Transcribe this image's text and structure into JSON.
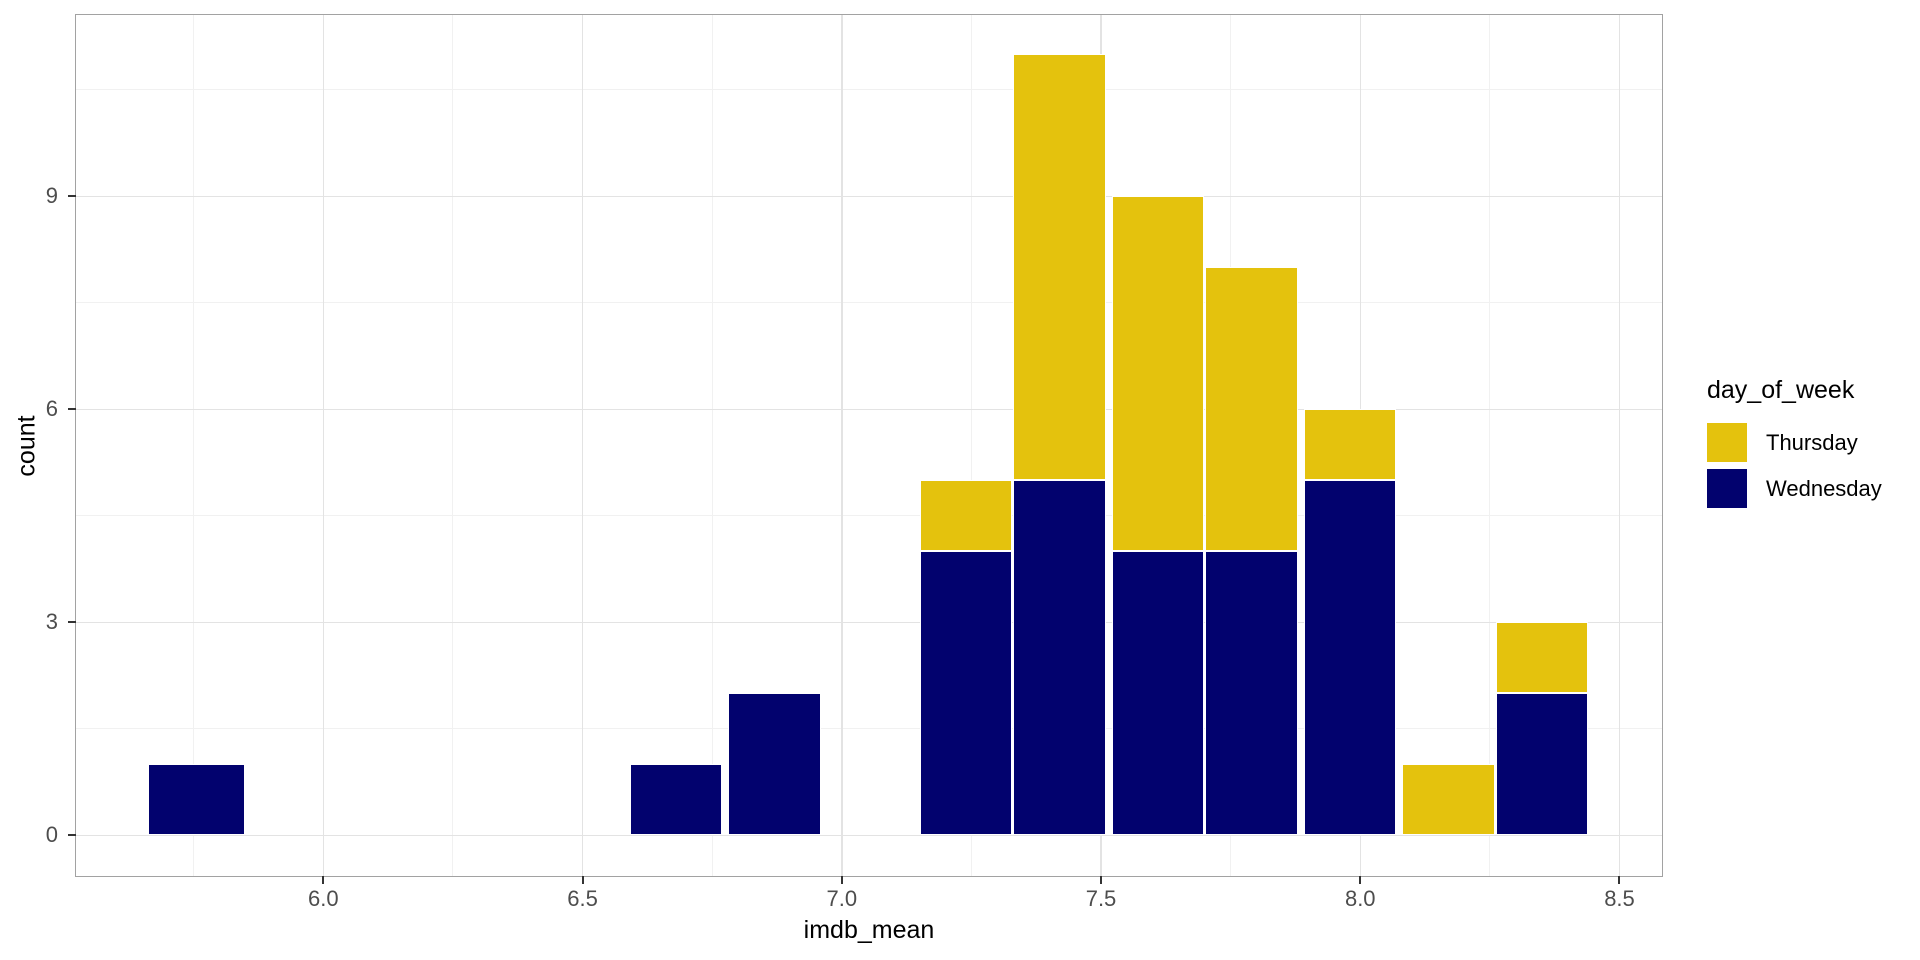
{
  "chart_data": {
    "type": "bar",
    "subtype": "stacked-histogram",
    "title": "",
    "xlabel": "imdb_mean",
    "ylabel": "count",
    "xlim": [
      5.523,
      8.582
    ],
    "ylim": [
      -0.571,
      11.556
    ],
    "grid": true,
    "x_ticks": [
      6.0,
      6.5,
      7.0,
      7.5,
      8.0,
      8.5
    ],
    "x_tick_labels": [
      "6.0",
      "6.5",
      "7.0",
      "7.5",
      "8.0",
      "8.5"
    ],
    "x_minor_ticks": [
      5.75,
      6.25,
      6.75,
      7.25,
      7.75,
      8.25
    ],
    "y_ticks": [
      0,
      3,
      6,
      9
    ],
    "y_tick_labels": [
      "0",
      "3",
      "6",
      "9"
    ],
    "y_minor_ticks": [
      1.5,
      4.5,
      7.5,
      10.5
    ],
    "series": [
      {
        "name": "Thursday",
        "color": "#E4C20D"
      },
      {
        "name": "Wednesday",
        "color": "#02026E"
      }
    ],
    "stack_order_bottom_to_top": [
      "Wednesday",
      "Thursday"
    ],
    "bins": [
      {
        "start": 5.66,
        "end": 5.85,
        "Wednesday": 1,
        "Thursday": 0
      },
      {
        "start": 6.59,
        "end": 6.77,
        "Wednesday": 1,
        "Thursday": 0
      },
      {
        "start": 6.78,
        "end": 6.96,
        "Wednesday": 2,
        "Thursday": 0
      },
      {
        "start": 7.15,
        "end": 7.33,
        "Wednesday": 4,
        "Thursday": 1
      },
      {
        "start": 7.33,
        "end": 7.51,
        "Wednesday": 5,
        "Thursday": 6
      },
      {
        "start": 7.52,
        "end": 7.7,
        "Wednesday": 4,
        "Thursday": 5
      },
      {
        "start": 7.7,
        "end": 7.88,
        "Wednesday": 4,
        "Thursday": 4
      },
      {
        "start": 7.89,
        "end": 8.07,
        "Wednesday": 5,
        "Thursday": 1
      },
      {
        "start": 8.08,
        "end": 8.26,
        "Wednesday": 0,
        "Thursday": 1
      },
      {
        "start": 8.26,
        "end": 8.44,
        "Wednesday": 2,
        "Thursday": 1
      }
    ],
    "legend": {
      "title": "day_of_week",
      "position": "right",
      "entries": [
        {
          "label": "Thursday",
          "color": "#E4C20D"
        },
        {
          "label": "Wednesday",
          "color": "#02026E"
        }
      ]
    },
    "colors": {
      "background": "#FFFFFF",
      "panel_border": "#A2A2A2",
      "grid_major": "#E3E3E3",
      "grid_minor": "#F1F1F1",
      "tick_mark": "#333333",
      "tick_label": "#4D4D4D",
      "axis_title": "#000000",
      "thursday": "#E4C20D",
      "wednesday": "#02026E"
    }
  }
}
